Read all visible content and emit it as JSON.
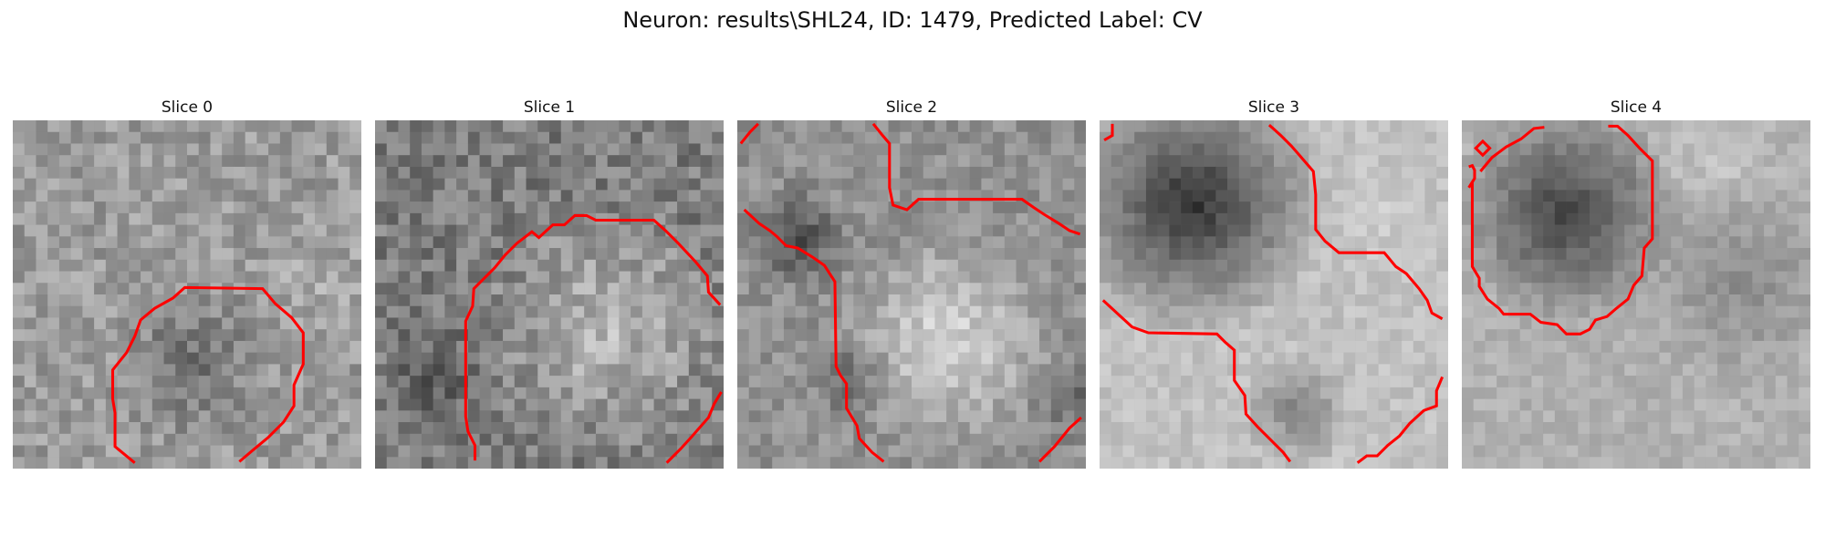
{
  "figure": {
    "title": "Neuron: results\\SHL24, ID: 1479, Predicted Label: CV"
  },
  "panels": [
    {
      "title": "Slice 0"
    },
    {
      "title": "Slice 1"
    },
    {
      "title": "Slice 2"
    },
    {
      "title": "Slice 3"
    },
    {
      "title": "Slice 4"
    }
  ],
  "colors": {
    "contour": "#ff0000",
    "background": "#ffffff"
  }
}
